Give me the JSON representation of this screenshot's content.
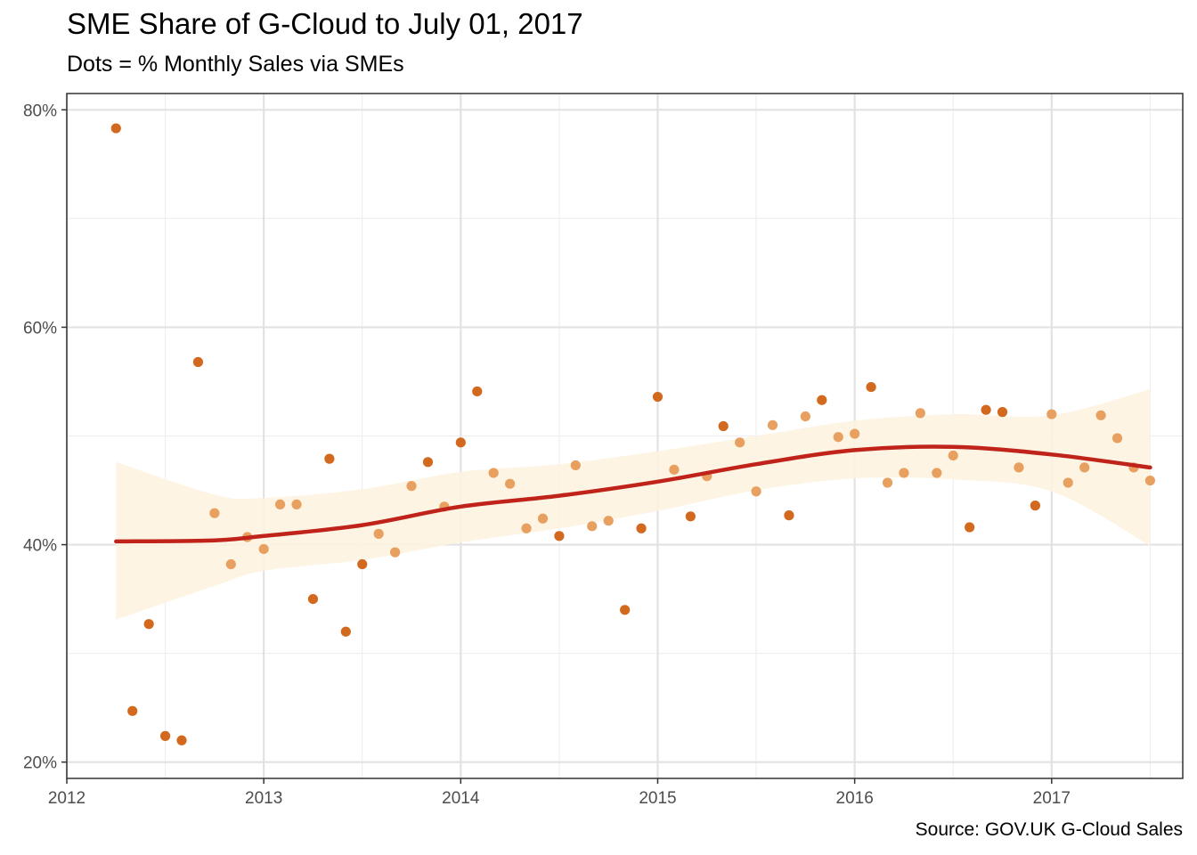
{
  "title": "SME Share of G-Cloud to July 01, 2017",
  "subtitle": "Dots = % Monthly Sales via SMEs",
  "caption": "Source: GOV.UK G-Cloud Sales",
  "colors": {
    "point_dark": "#d2691e",
    "point_light": "#e8a060",
    "smooth_line": "#c0231a",
    "ribbon": "#fdf3e0",
    "grid_major": "#e2e2e2",
    "grid_minor": "#efefef",
    "panel_border": "#333333"
  },
  "chart_data": {
    "type": "scatter",
    "title": "SME Share of G-Cloud to July 01, 2017",
    "subtitle": "Dots = % Monthly Sales via SMEs",
    "xlabel": "",
    "ylabel": "",
    "xlim": [
      "2012-01-01",
      "2017-07-31"
    ],
    "ylim": [
      0.2,
      0.8
    ],
    "x_ticks": [
      "2012",
      "2013",
      "2014",
      "2015",
      "2016",
      "2017"
    ],
    "y_ticks": [
      "20%",
      "40%",
      "60%",
      "80%"
    ],
    "y_tick_values": [
      0.2,
      0.4,
      0.6,
      0.8
    ],
    "grid": true,
    "legend": "none",
    "points": [
      {
        "x": "2012-04",
        "y": 0.783,
        "shade": "dark"
      },
      {
        "x": "2012-05",
        "y": 0.247,
        "shade": "dark"
      },
      {
        "x": "2012-06",
        "y": 0.327,
        "shade": "dark"
      },
      {
        "x": "2012-07",
        "y": 0.224,
        "shade": "dark"
      },
      {
        "x": "2012-08",
        "y": 0.22,
        "shade": "dark"
      },
      {
        "x": "2012-09",
        "y": 0.568,
        "shade": "dark"
      },
      {
        "x": "2012-10",
        "y": 0.429,
        "shade": "light"
      },
      {
        "x": "2012-11",
        "y": 0.382,
        "shade": "light"
      },
      {
        "x": "2012-12",
        "y": 0.407,
        "shade": "light"
      },
      {
        "x": "2013-01",
        "y": 0.396,
        "shade": "light"
      },
      {
        "x": "2013-02",
        "y": 0.437,
        "shade": "light"
      },
      {
        "x": "2013-03",
        "y": 0.437,
        "shade": "light"
      },
      {
        "x": "2013-04",
        "y": 0.35,
        "shade": "dark"
      },
      {
        "x": "2013-05",
        "y": 0.479,
        "shade": "dark"
      },
      {
        "x": "2013-06",
        "y": 0.32,
        "shade": "dark"
      },
      {
        "x": "2013-07",
        "y": 0.382,
        "shade": "dark"
      },
      {
        "x": "2013-08",
        "y": 0.41,
        "shade": "light"
      },
      {
        "x": "2013-09",
        "y": 0.393,
        "shade": "light"
      },
      {
        "x": "2013-10",
        "y": 0.454,
        "shade": "light"
      },
      {
        "x": "2013-11",
        "y": 0.476,
        "shade": "dark"
      },
      {
        "x": "2013-12",
        "y": 0.435,
        "shade": "light"
      },
      {
        "x": "2014-01",
        "y": 0.494,
        "shade": "dark"
      },
      {
        "x": "2014-02",
        "y": 0.541,
        "shade": "dark"
      },
      {
        "x": "2014-03",
        "y": 0.466,
        "shade": "light"
      },
      {
        "x": "2014-04",
        "y": 0.456,
        "shade": "light"
      },
      {
        "x": "2014-05",
        "y": 0.415,
        "shade": "light"
      },
      {
        "x": "2014-06",
        "y": 0.424,
        "shade": "light"
      },
      {
        "x": "2014-07",
        "y": 0.408,
        "shade": "dark"
      },
      {
        "x": "2014-08",
        "y": 0.473,
        "shade": "light"
      },
      {
        "x": "2014-09",
        "y": 0.417,
        "shade": "light"
      },
      {
        "x": "2014-10",
        "y": 0.422,
        "shade": "light"
      },
      {
        "x": "2014-11",
        "y": 0.34,
        "shade": "dark"
      },
      {
        "x": "2014-12",
        "y": 0.415,
        "shade": "dark"
      },
      {
        "x": "2015-01",
        "y": 0.536,
        "shade": "dark"
      },
      {
        "x": "2015-02",
        "y": 0.469,
        "shade": "light"
      },
      {
        "x": "2015-03",
        "y": 0.426,
        "shade": "dark"
      },
      {
        "x": "2015-04",
        "y": 0.463,
        "shade": "light"
      },
      {
        "x": "2015-05",
        "y": 0.509,
        "shade": "dark"
      },
      {
        "x": "2015-06",
        "y": 0.494,
        "shade": "light"
      },
      {
        "x": "2015-07",
        "y": 0.449,
        "shade": "light"
      },
      {
        "x": "2015-08",
        "y": 0.51,
        "shade": "light"
      },
      {
        "x": "2015-09",
        "y": 0.427,
        "shade": "dark"
      },
      {
        "x": "2015-10",
        "y": 0.518,
        "shade": "light"
      },
      {
        "x": "2015-11",
        "y": 0.533,
        "shade": "dark"
      },
      {
        "x": "2015-12",
        "y": 0.499,
        "shade": "light"
      },
      {
        "x": "2016-01",
        "y": 0.502,
        "shade": "light"
      },
      {
        "x": "2016-02",
        "y": 0.545,
        "shade": "dark"
      },
      {
        "x": "2016-03",
        "y": 0.457,
        "shade": "light"
      },
      {
        "x": "2016-04",
        "y": 0.466,
        "shade": "light"
      },
      {
        "x": "2016-05",
        "y": 0.521,
        "shade": "light"
      },
      {
        "x": "2016-06",
        "y": 0.466,
        "shade": "light"
      },
      {
        "x": "2016-07",
        "y": 0.482,
        "shade": "light"
      },
      {
        "x": "2016-08",
        "y": 0.416,
        "shade": "dark"
      },
      {
        "x": "2016-09",
        "y": 0.524,
        "shade": "dark"
      },
      {
        "x": "2016-10",
        "y": 0.522,
        "shade": "dark"
      },
      {
        "x": "2016-11",
        "y": 0.471,
        "shade": "light"
      },
      {
        "x": "2016-12",
        "y": 0.436,
        "shade": "dark"
      },
      {
        "x": "2017-01",
        "y": 0.52,
        "shade": "light"
      },
      {
        "x": "2017-02",
        "y": 0.457,
        "shade": "light"
      },
      {
        "x": "2017-03",
        "y": 0.471,
        "shade": "light"
      },
      {
        "x": "2017-04",
        "y": 0.519,
        "shade": "light"
      },
      {
        "x": "2017-05",
        "y": 0.498,
        "shade": "light"
      },
      {
        "x": "2017-06",
        "y": 0.471,
        "shade": "light"
      },
      {
        "x": "2017-07",
        "y": 0.459,
        "shade": "light"
      }
    ],
    "smooth": [
      {
        "x": "2012-04",
        "y": 0.403,
        "lo": 0.331,
        "hi": 0.476
      },
      {
        "x": "2012-10",
        "y": 0.404,
        "lo": 0.362,
        "hi": 0.446
      },
      {
        "x": "2013-01",
        "y": 0.408,
        "lo": 0.376,
        "hi": 0.443
      },
      {
        "x": "2013-07",
        "y": 0.418,
        "lo": 0.386,
        "hi": 0.451
      },
      {
        "x": "2014-01",
        "y": 0.435,
        "lo": 0.402,
        "hi": 0.467
      },
      {
        "x": "2014-07",
        "y": 0.445,
        "lo": 0.415,
        "hi": 0.474
      },
      {
        "x": "2015-01",
        "y": 0.458,
        "lo": 0.431,
        "hi": 0.486
      },
      {
        "x": "2015-07",
        "y": 0.474,
        "lo": 0.45,
        "hi": 0.5
      },
      {
        "x": "2016-01",
        "y": 0.487,
        "lo": 0.461,
        "hi": 0.514
      },
      {
        "x": "2016-07",
        "y": 0.49,
        "lo": 0.46,
        "hi": 0.52
      },
      {
        "x": "2017-01",
        "y": 0.483,
        "lo": 0.449,
        "hi": 0.519
      },
      {
        "x": "2017-07",
        "y": 0.471,
        "lo": 0.399,
        "hi": 0.543
      }
    ]
  }
}
